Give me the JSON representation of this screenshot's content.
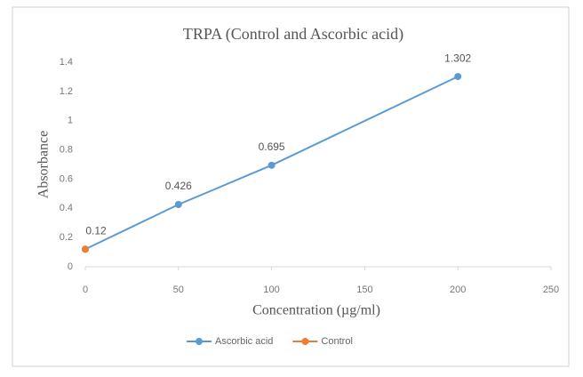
{
  "chart_data": {
    "type": "line",
    "title": "TRPA (Control and Ascorbic acid)",
    "x_label": "Concentration (µg/ml)",
    "y_label": "Absorbance",
    "series": [
      {
        "name": "Ascorbic acid",
        "color": "#5b9bd5",
        "x": [
          0,
          50,
          100,
          200
        ],
        "values": [
          0.12,
          0.426,
          0.695,
          1.302
        ]
      },
      {
        "name": "Control",
        "color": "#ed7d31",
        "x": [
          0
        ],
        "values": [
          0.12
        ]
      }
    ],
    "data_labels": "Ascorbic acid",
    "xlim": [
      0,
      250
    ],
    "xticks": [
      0,
      50,
      100,
      150,
      200,
      250
    ],
    "ylim": [
      0,
      1.4
    ],
    "yticks": [
      0,
      0.2,
      0.4,
      0.6,
      0.8,
      1,
      1.2,
      1.4
    ],
    "grid": false,
    "legend": "bottom"
  }
}
